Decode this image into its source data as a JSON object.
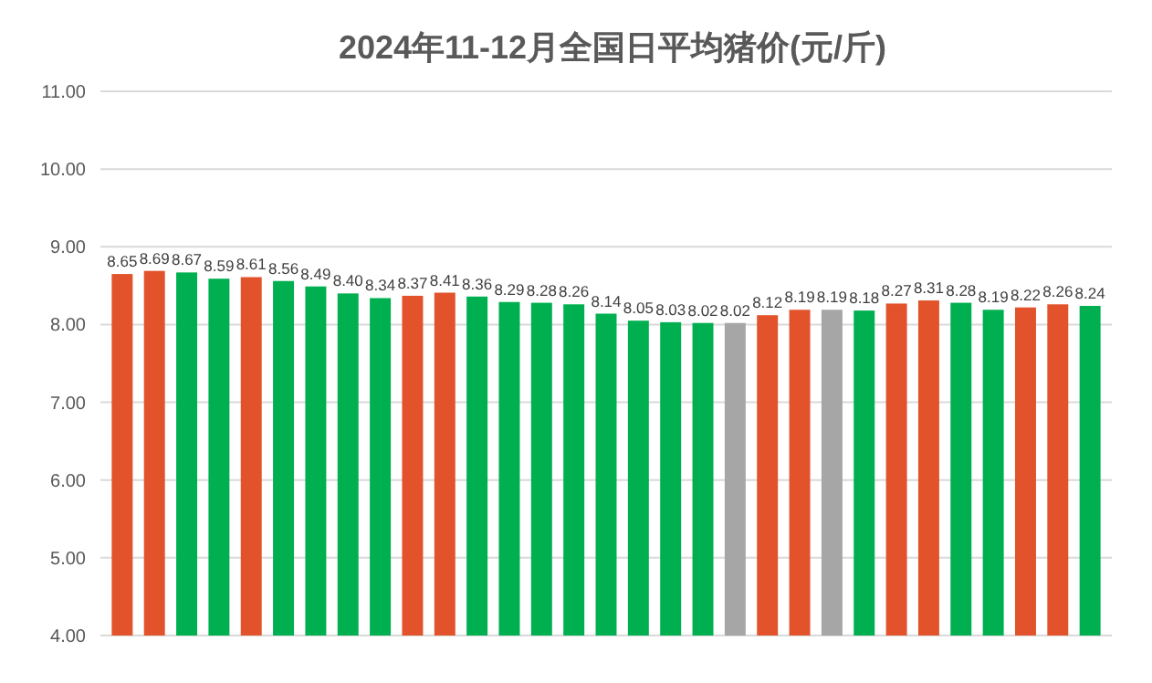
{
  "chart_data": {
    "type": "bar",
    "title": "2024年11-12月全国日平均猪价(元/斤)",
    "categories": [
      null,
      null,
      null,
      null,
      null,
      null,
      null,
      null,
      null,
      null,
      null,
      null,
      null,
      null,
      null,
      null,
      null,
      null,
      null,
      null,
      null,
      null,
      null,
      null,
      null,
      null,
      null,
      null,
      null,
      null,
      null
    ],
    "values": [
      8.65,
      8.69,
      8.67,
      8.59,
      8.61,
      8.56,
      8.49,
      8.4,
      8.34,
      8.37,
      8.41,
      8.36,
      8.29,
      8.28,
      8.26,
      8.14,
      8.05,
      8.03,
      8.02,
      8.02,
      8.12,
      8.19,
      8.19,
      8.18,
      8.27,
      8.31,
      8.28,
      8.19,
      8.22,
      8.26,
      8.24
    ],
    "value_labels": [
      "8.65",
      "8.69",
      "8.67",
      "8.59",
      "8.61",
      "8.56",
      "8.49",
      "8.40",
      "8.34",
      "8.37",
      "8.41",
      "8.36",
      "8.29",
      "8.28",
      "8.26",
      "8.14",
      "8.05",
      "8.03",
      "8.02",
      "8.02",
      "8.12",
      "8.19",
      "8.19",
      "8.18",
      "8.27",
      "8.31",
      "8.28",
      "8.19",
      "8.22",
      "8.26",
      "8.24"
    ],
    "colors": [
      "#e2532b",
      "#e2532b",
      "#00b050",
      "#00b050",
      "#e2532b",
      "#00b050",
      "#00b050",
      "#00b050",
      "#00b050",
      "#e2532b",
      "#e2532b",
      "#00b050",
      "#00b050",
      "#00b050",
      "#00b050",
      "#00b050",
      "#00b050",
      "#00b050",
      "#00b050",
      "#a6a6a6",
      "#e2532b",
      "#e2532b",
      "#a6a6a6",
      "#00b050",
      "#e2532b",
      "#e2532b",
      "#00b050",
      "#00b050",
      "#e2532b",
      "#e2532b",
      "#00b050"
    ],
    "ylim": [
      4,
      11
    ],
    "yticks": [
      {
        "value": 4,
        "label": "4.00"
      },
      {
        "value": 5,
        "label": "5.00"
      },
      {
        "value": 6,
        "label": "6.00"
      },
      {
        "value": 7,
        "label": "7.00"
      },
      {
        "value": 8,
        "label": "8.00"
      },
      {
        "value": 9,
        "label": "9.00"
      },
      {
        "value": 10,
        "label": "10.00"
      },
      {
        "value": 11,
        "label": "11.00"
      }
    ],
    "grid": "y"
  }
}
